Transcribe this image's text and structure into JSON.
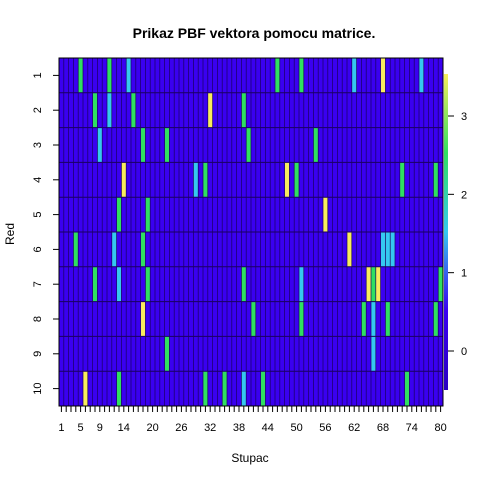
{
  "chart_data": {
    "type": "heatmap",
    "title": "Prikaz PBF vektora pomocu matrice.",
    "xlabel": "Stupac",
    "ylabel": "Red",
    "x_tick_labels": [
      "1",
      "5",
      "9",
      "14",
      "20",
      "26",
      "32",
      "38",
      "44",
      "50",
      "56",
      "62",
      "68",
      "74",
      "80"
    ],
    "y_tick_labels": [
      "1",
      "2",
      "3",
      "4",
      "5",
      "6",
      "7",
      "8",
      "9",
      "10"
    ],
    "n_rows": 10,
    "n_cols": 80,
    "value_range": [
      0,
      3
    ],
    "colorbar_ticks": [
      "0",
      "1",
      "2",
      "3"
    ],
    "colors": {
      "0": "#3a00f0",
      "1": "#35c8f0",
      "2": "#2fe060",
      "3": "#f8ec5c",
      "grid": "#1a0060",
      "frame": "#000000",
      "colorbar_bottom": "#2a00c0"
    },
    "nonzero_cells": [
      {
        "row": 1,
        "col": 5,
        "value": 2
      },
      {
        "row": 1,
        "col": 11,
        "value": 2
      },
      {
        "row": 1,
        "col": 15,
        "value": 1
      },
      {
        "row": 1,
        "col": 46,
        "value": 2
      },
      {
        "row": 1,
        "col": 51,
        "value": 2
      },
      {
        "row": 1,
        "col": 62,
        "value": 1
      },
      {
        "row": 1,
        "col": 68,
        "value": 3
      },
      {
        "row": 1,
        "col": 76,
        "value": 1
      },
      {
        "row": 2,
        "col": 8,
        "value": 2
      },
      {
        "row": 2,
        "col": 11,
        "value": 1
      },
      {
        "row": 2,
        "col": 16,
        "value": 2
      },
      {
        "row": 2,
        "col": 32,
        "value": 3
      },
      {
        "row": 2,
        "col": 39,
        "value": 2
      },
      {
        "row": 3,
        "col": 9,
        "value": 1
      },
      {
        "row": 3,
        "col": 18,
        "value": 2
      },
      {
        "row": 3,
        "col": 23,
        "value": 2
      },
      {
        "row": 3,
        "col": 40,
        "value": 2
      },
      {
        "row": 3,
        "col": 54,
        "value": 2
      },
      {
        "row": 4,
        "col": 14,
        "value": 3
      },
      {
        "row": 4,
        "col": 29,
        "value": 1
      },
      {
        "row": 4,
        "col": 31,
        "value": 2
      },
      {
        "row": 4,
        "col": 48,
        "value": 3
      },
      {
        "row": 4,
        "col": 50,
        "value": 2
      },
      {
        "row": 4,
        "col": 72,
        "value": 2
      },
      {
        "row": 4,
        "col": 79,
        "value": 2
      },
      {
        "row": 5,
        "col": 13,
        "value": 2
      },
      {
        "row": 5,
        "col": 19,
        "value": 2
      },
      {
        "row": 5,
        "col": 56,
        "value": 3
      },
      {
        "row": 6,
        "col": 4,
        "value": 2
      },
      {
        "row": 6,
        "col": 12,
        "value": 1
      },
      {
        "row": 6,
        "col": 18,
        "value": 2
      },
      {
        "row": 6,
        "col": 61,
        "value": 3
      },
      {
        "row": 6,
        "col": 68,
        "value": 1
      },
      {
        "row": 6,
        "col": 69,
        "value": 1
      },
      {
        "row": 6,
        "col": 70,
        "value": 1
      },
      {
        "row": 7,
        "col": 8,
        "value": 2
      },
      {
        "row": 7,
        "col": 13,
        "value": 1
      },
      {
        "row": 7,
        "col": 19,
        "value": 2
      },
      {
        "row": 7,
        "col": 39,
        "value": 2
      },
      {
        "row": 7,
        "col": 51,
        "value": 1
      },
      {
        "row": 7,
        "col": 65,
        "value": 3
      },
      {
        "row": 7,
        "col": 66,
        "value": 2
      },
      {
        "row": 7,
        "col": 67,
        "value": 3
      },
      {
        "row": 7,
        "col": 80,
        "value": 2
      },
      {
        "row": 8,
        "col": 18,
        "value": 3
      },
      {
        "row": 8,
        "col": 41,
        "value": 2
      },
      {
        "row": 8,
        "col": 51,
        "value": 2
      },
      {
        "row": 8,
        "col": 64,
        "value": 2
      },
      {
        "row": 8,
        "col": 66,
        "value": 1
      },
      {
        "row": 8,
        "col": 69,
        "value": 2
      },
      {
        "row": 8,
        "col": 79,
        "value": 2
      },
      {
        "row": 9,
        "col": 23,
        "value": 2
      },
      {
        "row": 9,
        "col": 66,
        "value": 1
      },
      {
        "row": 10,
        "col": 6,
        "value": 3
      },
      {
        "row": 10,
        "col": 13,
        "value": 2
      },
      {
        "row": 10,
        "col": 31,
        "value": 2
      },
      {
        "row": 10,
        "col": 35,
        "value": 2
      },
      {
        "row": 10,
        "col": 39,
        "value": 1
      },
      {
        "row": 10,
        "col": 43,
        "value": 2
      },
      {
        "row": 10,
        "col": 73,
        "value": 2
      }
    ]
  }
}
